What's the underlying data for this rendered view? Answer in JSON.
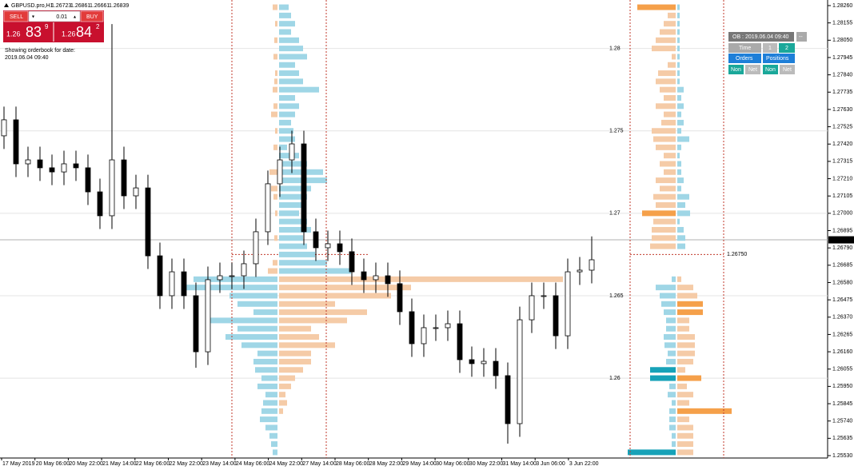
{
  "header": {
    "symbol": "GBPUSD.pro,H1",
    "ohlc": [
      1.26723,
      1.26861,
      1.26661,
      1.26839
    ]
  },
  "trade_panel": {
    "sell": "SELL",
    "buy": "BUY",
    "lots": "0.01",
    "sell_price": [
      "1.26",
      "83",
      "9"
    ],
    "buy_price": [
      "1.26",
      "84",
      "2"
    ]
  },
  "note": {
    "line1": "Showing orderbook for date:",
    "line2": "2019.06.04 09:40"
  },
  "ob_panel": {
    "title": "OB : 2019.06.04 09:40",
    "close": "--",
    "time": "Time",
    "one": "1",
    "two": "2",
    "orders": "Orders",
    "positions": "Positions",
    "non1": "Non",
    "net1": "Net",
    "non2": "Non",
    "net2": "Net"
  },
  "price_axis": {
    "ylim": [
      1.2553,
      1.2826
    ],
    "ticks": [
      {
        "value": 1.2826,
        "label": "1.28260"
      },
      1.28155,
      {
        "value": 1.2805,
        "label": "1.28050"
      },
      1.27945,
      {
        "value": 1.2784,
        "label": "1.27840"
      },
      1.27735,
      {
        "value": 1.2763,
        "label": "1.27630"
      },
      1.27525,
      {
        "value": 1.2742,
        "label": "1.27420"
      },
      1.27315,
      {
        "value": 1.2721,
        "label": "1.27210"
      },
      1.27105,
      {
        "value": 1.27,
        "label": "1.27000"
      },
      1.26895,
      {
        "value": 1.2679,
        "label": "1.26790"
      },
      1.26685,
      {
        "value": 1.2658,
        "label": "1.26580"
      },
      1.26475,
      {
        "value": 1.2637,
        "label": "1.26370"
      },
      1.26265,
      {
        "value": 1.2616,
        "label": "1.26160"
      },
      1.26055,
      {
        "value": 1.2595,
        "label": "1.25950"
      },
      1.25845,
      {
        "value": 1.2574,
        "label": "1.25740"
      },
      1.25635,
      {
        "value": 1.2553,
        "label": "1.25530"
      }
    ],
    "current": 1.26839,
    "price_line": {
      "value": 1.2675,
      "label": "1.26750"
    }
  },
  "level_labels": [
    1.28,
    1.275,
    1.27,
    1.265,
    1.26
  ],
  "dates": [
    "17 May 2019",
    "20 May 06:00",
    "20 May 22:00",
    "21 May 14:00",
    "22 May 06:00",
    "22 May 22:00",
    "23 May 14:00",
    "24 May 06:00",
    "24 May 22:00",
    "27 May 14:00",
    "28 May 06:00",
    "28 May 22:00",
    "29 May 14:00",
    "30 May 06:00",
    "30 May 22:00",
    "31 May 14:00",
    "3 Jun 06:00",
    "3 Jun 22:00"
  ],
  "candles": {
    "open": [
      1.2747,
      1.27567,
      1.273,
      1.27324,
      1.27276,
      1.27251,
      1.273,
      1.27276,
      1.2713,
      1.26985,
      1.27324,
      1.27106,
      1.27154,
      1.26742,
      1.265,
      1.26645,
      1.265,
      1.2616,
      1.26597,
      1.26621,
      1.26621,
      1.26694,
      1.26888,
      1.27179,
      1.27324,
      1.27421,
      1.26888,
      1.26791,
      1.26815,
      1.26767,
      1.26645,
      1.26597,
      1.26621,
      1.26573,
      1.26403,
      1.26209,
      1.26306,
      1.26306,
      1.2633,
      1.26112,
      1.26088,
      1.26102,
      1.26015,
      1.25724,
      1.26354,
      1.265,
      1.265,
      1.26257,
      1.26645,
      1.26655
    ],
    "high": [
      1.27647,
      1.27647,
      1.27404,
      1.27404,
      1.27356,
      1.2738,
      1.2738,
      1.27356,
      1.2721,
      1.28148,
      1.27404,
      1.27234,
      1.27234,
      1.26822,
      1.26725,
      1.26725,
      1.2658,
      1.26677,
      1.26701,
      1.26701,
      1.26774,
      1.26968,
      1.27259,
      1.27404,
      1.27501,
      1.27501,
      1.26968,
      1.26895,
      1.26895,
      1.26847,
      1.26725,
      1.26701,
      1.26701,
      1.26653,
      1.26483,
      1.26386,
      1.26386,
      1.2641,
      1.2641,
      1.26192,
      1.26182,
      1.26182,
      1.26095,
      1.26434,
      1.2658,
      1.2658,
      1.2658,
      1.26725,
      1.26735,
      1.2686
    ],
    "low": [
      1.2739,
      1.2722,
      1.2722,
      1.27196,
      1.27171,
      1.27171,
      1.27196,
      1.2705,
      1.26905,
      1.26905,
      1.27026,
      1.27026,
      1.26662,
      1.2642,
      1.2642,
      1.2642,
      1.26063,
      1.2608,
      1.26517,
      1.26541,
      1.26541,
      1.26614,
      1.26808,
      1.27099,
      1.27244,
      1.26808,
      1.26711,
      1.26711,
      1.26687,
      1.26565,
      1.26517,
      1.26517,
      1.26493,
      1.26323,
      1.26129,
      1.26129,
      1.26226,
      1.26226,
      1.26032,
      1.26008,
      1.26008,
      1.25935,
      1.25603,
      1.25644,
      1.26274,
      1.2642,
      1.26177,
      1.26177,
      1.26565,
      1.26575
    ],
    "close": [
      1.27567,
      1.273,
      1.27324,
      1.27276,
      1.27251,
      1.273,
      1.27276,
      1.2713,
      1.26985,
      1.27324,
      1.27106,
      1.27154,
      1.26742,
      1.265,
      1.26645,
      1.265,
      1.2616,
      1.26597,
      1.26621,
      1.26621,
      1.26694,
      1.26888,
      1.27179,
      1.27324,
      1.27421,
      1.26888,
      1.26791,
      1.26815,
      1.26767,
      1.26645,
      1.26597,
      1.26621,
      1.26573,
      1.26403,
      1.26209,
      1.26306,
      1.26306,
      1.2633,
      1.26112,
      1.26088,
      1.26102,
      1.26015,
      1.25724,
      1.26354,
      1.265,
      1.265,
      1.26257,
      1.26645,
      1.26655,
      1.26718
    ]
  },
  "left_book": {
    "upper": {
      "levels": [
        1.2825,
        1.282,
        1.2815,
        1.281,
        1.2805,
        1.28,
        1.2795,
        1.279,
        1.2785,
        1.278,
        1.2775,
        1.277,
        1.2765,
        1.276,
        1.2755,
        1.275,
        1.2745,
        1.274,
        1.2735,
        1.273,
        1.2725,
        1.272,
        1.2715,
        1.271,
        1.2705,
        1.27,
        1.2695,
        1.269,
        1.2685,
        1.268,
        1.2675,
        1.267,
        1.2665
      ],
      "left": [
        6,
        0,
        3,
        0,
        4,
        0,
        5,
        0,
        3,
        4,
        6,
        0,
        5,
        8,
        0,
        3,
        0,
        5,
        0,
        0,
        10,
        0,
        8,
        5,
        0,
        3,
        0,
        0,
        4,
        0,
        0,
        6,
        12
      ],
      "right": [
        12,
        15,
        20,
        15,
        25,
        30,
        35,
        20,
        25,
        30,
        50,
        20,
        25,
        20,
        15,
        18,
        20,
        10,
        25,
        35,
        55,
        60,
        40,
        35,
        30,
        25,
        35,
        40,
        30,
        35,
        45,
        60,
        90
      ],
      "left_color": "#f5cba7",
      "right_color": "#9fd6e6"
    },
    "lower": {
      "levels": [
        1.266,
        1.2655,
        1.265,
        1.2645,
        1.264,
        1.2635,
        1.263,
        1.2625,
        1.262,
        1.2615,
        1.261,
        1.2605,
        1.26,
        1.2595,
        1.259,
        1.2585,
        1.258,
        1.2575,
        1.257,
        1.2565,
        1.256,
        1.2555
      ],
      "left": [
        105,
        115,
        60,
        50,
        30,
        90,
        50,
        65,
        45,
        25,
        30,
        28,
        20,
        25,
        15,
        18,
        20,
        22,
        15,
        10,
        8,
        6
      ],
      "right": [
        355,
        165,
        140,
        70,
        110,
        85,
        40,
        50,
        70,
        40,
        40,
        30,
        20,
        15,
        8,
        10,
        5,
        0,
        0,
        0,
        0,
        0
      ],
      "left_color": "#9fd6e6",
      "right_color": "#f5cba7"
    }
  },
  "right_book": {
    "upper": {
      "levels": [
        1.2825,
        1.282,
        1.2815,
        1.281,
        1.2805,
        1.28,
        1.2795,
        1.279,
        1.2785,
        1.278,
        1.2775,
        1.277,
        1.2765,
        1.276,
        1.2755,
        1.275,
        1.2745,
        1.274,
        1.2735,
        1.273,
        1.2725,
        1.272,
        1.2715,
        1.271,
        1.2705,
        1.27,
        1.2695,
        1.269,
        1.2685,
        1.268
      ],
      "left": [
        48,
        10,
        15,
        20,
        25,
        30,
        5,
        10,
        22,
        25,
        20,
        15,
        25,
        15,
        18,
        30,
        28,
        25,
        15,
        20,
        15,
        25,
        20,
        28,
        25,
        42,
        28,
        30,
        30,
        32
      ],
      "right": [
        3,
        3,
        3,
        3,
        3,
        3,
        3,
        3,
        3,
        3,
        8,
        5,
        8,
        5,
        8,
        5,
        15,
        5,
        3,
        5,
        5,
        8,
        5,
        15,
        10,
        16,
        3,
        8,
        10,
        10
      ],
      "left_color": "#f5cba7",
      "right_color": "#9fd6e6",
      "left_bright": [
        0,
        25
      ],
      "right_bright": [],
      "left_bright_color": "#f5a04a",
      "right_bright_color": "#17a2b8"
    },
    "lower": {
      "levels": [
        1.266,
        1.2655,
        1.265,
        1.2645,
        1.264,
        1.2635,
        1.263,
        1.2625,
        1.262,
        1.2615,
        1.261,
        1.2605,
        1.26,
        1.2595,
        1.259,
        1.2585,
        1.258,
        1.2575,
        1.257,
        1.2565,
        1.256,
        1.2555
      ],
      "left": [
        5,
        25,
        20,
        18,
        15,
        12,
        12,
        15,
        14,
        10,
        12,
        32,
        32,
        8,
        10,
        5,
        8,
        8,
        8,
        5,
        5,
        60
      ],
      "right": [
        5,
        20,
        25,
        32,
        32,
        15,
        15,
        22,
        22,
        22,
        20,
        10,
        30,
        12,
        20,
        15,
        68,
        15,
        20,
        20,
        20,
        20
      ],
      "left_color": "#9fd6e6",
      "right_color": "#f5cba7",
      "left_bright": [
        11,
        12,
        21
      ],
      "right_bright": [
        3,
        4,
        12,
        16
      ],
      "left_bright_color": "#17a2b8",
      "right_bright_color": "#f5a04a"
    }
  }
}
